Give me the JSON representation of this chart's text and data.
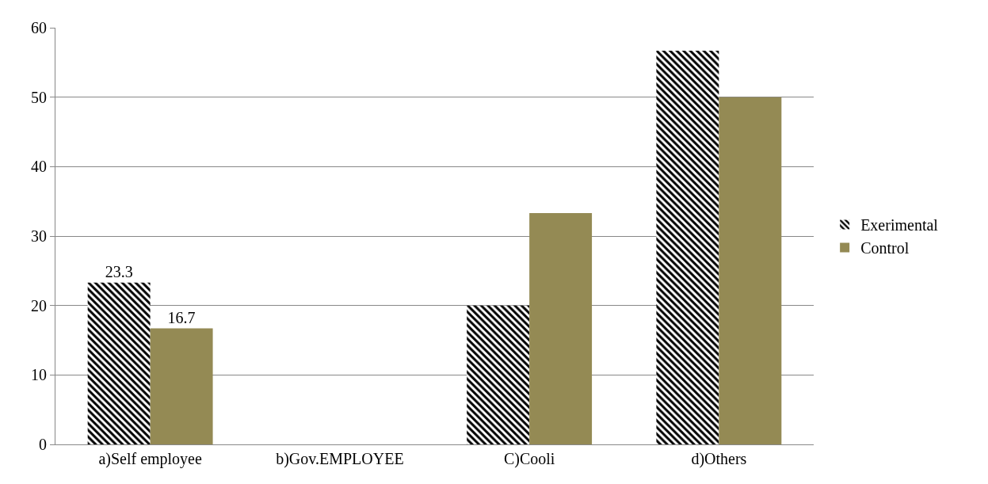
{
  "chart_data": {
    "type": "bar",
    "categories": [
      "a)Self employee",
      "b)Gov.EMPLOYEE",
      "C)Cooli",
      "d)Others"
    ],
    "series": [
      {
        "name": "Exerimental",
        "color": "#000000",
        "values": [
          23.3,
          0,
          20,
          56.7
        ],
        "value_labels": [
          "23.3",
          null,
          null,
          null
        ]
      },
      {
        "name": "Control",
        "color": "#948a54",
        "values": [
          16.7,
          0,
          33.3,
          50
        ],
        "value_labels": [
          "16.7",
          null,
          null,
          null
        ]
      }
    ],
    "ylim": [
      0,
      60
    ],
    "yticks": [
      0,
      10,
      20,
      30,
      40,
      50,
      60
    ],
    "grid": "y",
    "legend": "right"
  }
}
